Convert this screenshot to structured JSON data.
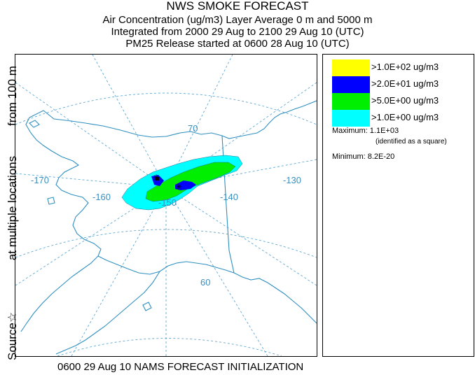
{
  "header": {
    "title": "NWS SMOKE FORECAST",
    "line2": "Air Concentration (ug/m3) Layer Average    0 m and  5000 m",
    "line3": "Integrated from 2000 29 Aug to 2100 29 Aug 10 (UTC)",
    "line4": "PM25 Release started at 0600 28 Aug 10 (UTC)"
  },
  "side_label": {
    "source": "Source☆",
    "locations": "at multiple locations",
    "from": "from   100 m"
  },
  "map": {
    "lon_labels": [
      "-170",
      "-160",
      "-150",
      "-140",
      "-130"
    ],
    "lat_labels": [
      "70",
      "60"
    ],
    "coast_color": "#2f8fc0",
    "grid_color": "#5fa8d3"
  },
  "legend": {
    "items": [
      {
        "label": ">1.0E+02 ug/m3",
        "color": "#ffff00"
      },
      {
        "label": ">2.0E+01 ug/m3",
        "color": "#0000ff"
      },
      {
        "label": ">5.0E+00 ug/m3",
        "color": "#00ee00"
      },
      {
        "label": ">1.0E+00 ug/m3",
        "color": "#00ffff"
      }
    ],
    "maximum": "Maximum: 1.1E+03",
    "maximum_note": "(identified as a square)",
    "minimum": "Minimum: 8.2E-20"
  },
  "footer": "0600 29 Aug 10 NAMS FORECAST INITIALIZATION"
}
